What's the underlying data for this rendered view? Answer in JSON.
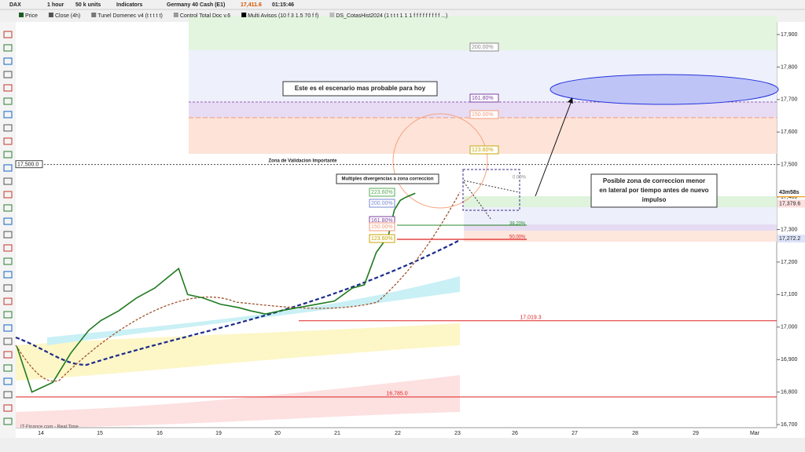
{
  "toolbar": {
    "symbol": "DAX",
    "timeframe": "1 hour",
    "units": "50 k units",
    "indicators": "Indicators",
    "instrument": "Germany 40 Cash (E1)",
    "last": "17,411.6",
    "clock": "01:15:46"
  },
  "indicator_bar": [
    "Price",
    "Close (4h)",
    "Tunel Domenec v4 (t t t t t)",
    "Control Total Doc v.6",
    "Multi Avisos (10 f 3 1.5 70 f f)",
    "DS_CotasHist2024 (1 t t t 1 1 1 f f f f f f f f f ...)"
  ],
  "chart": {
    "yticks": [
      {
        "value": 17900,
        "label": "17,900"
      },
      {
        "value": 17800,
        "label": "17,800"
      },
      {
        "value": 17700,
        "label": "17,700"
      },
      {
        "value": 17600,
        "label": "17,600"
      },
      {
        "value": 17500,
        "label": "17,500"
      },
      {
        "value": 17400,
        "label": "17,400"
      },
      {
        "value": 17300,
        "label": "17,300"
      },
      {
        "value": 17200,
        "label": "17,200"
      },
      {
        "value": 17100,
        "label": "17,100"
      },
      {
        "value": 17000,
        "label": "17,000"
      },
      {
        "value": 16900,
        "label": "16,900"
      },
      {
        "value": 16800,
        "label": "16,800"
      },
      {
        "value": 16700,
        "label": "16,700"
      }
    ],
    "xlabels": [
      "14",
      "15",
      "16",
      "19",
      "20",
      "21",
      "22",
      "23",
      "26",
      "27",
      "28",
      "29",
      "Mar"
    ],
    "price": {
      "x": [
        -0.4,
        -0.15,
        0.2,
        0.5,
        0.8,
        1.0,
        1.3,
        1.6,
        1.9,
        2.1,
        2.3,
        2.45,
        2.7,
        3.0,
        3.3,
        3.5,
        3.75,
        4.0,
        4.3,
        4.6,
        4.9,
        5.2,
        5.4,
        5.6,
        5.8,
        5.9,
        6.0,
        6.1,
        6.25
      ],
      "values": [
        16940,
        16800,
        16830,
        16920,
        16990,
        17020,
        17050,
        17090,
        17120,
        17150,
        17180,
        17100,
        17090,
        17070,
        17060,
        17050,
        17040,
        17050,
        17060,
        17070,
        17080,
        17120,
        17130,
        17230,
        17280,
        17360,
        17390,
        17400,
        17411.6
      ]
    },
    "levels": [
      {
        "value": 17500,
        "label": "17,500.0"
      },
      {
        "value": 17019.3,
        "label": "17,019.3"
      },
      {
        "value": 16785,
        "label": "16,785.0"
      }
    ],
    "price_tags": [
      {
        "value": 17411.6,
        "label": "17,411.6"
      },
      {
        "value": 17379.6,
        "label": "17,379.6"
      },
      {
        "value": 17272.2,
        "label": "17,272.2"
      }
    ],
    "countdown": "43m58s",
    "fib_upper": [
      "200.00%",
      "161.80%",
      "150.00%",
      "123.60%"
    ],
    "fib_lower": [
      "223.60%",
      "200.00%",
      "161.80%",
      "150.00%",
      "123.60%"
    ],
    "retracements": [
      "0.00%",
      "38.20%",
      "50.00%"
    ],
    "notes": [
      "Este es el escenario mas probable para hoy",
      "Zona de Validacion Importante",
      "Multiples divergencias a zona correccion"
    ],
    "callout": [
      "Posible zona de correccion menor",
      "en lateral por tiempo antes de nuevo",
      "impulso"
    ]
  },
  "footer": "IT-Finance.com - Real Time"
}
